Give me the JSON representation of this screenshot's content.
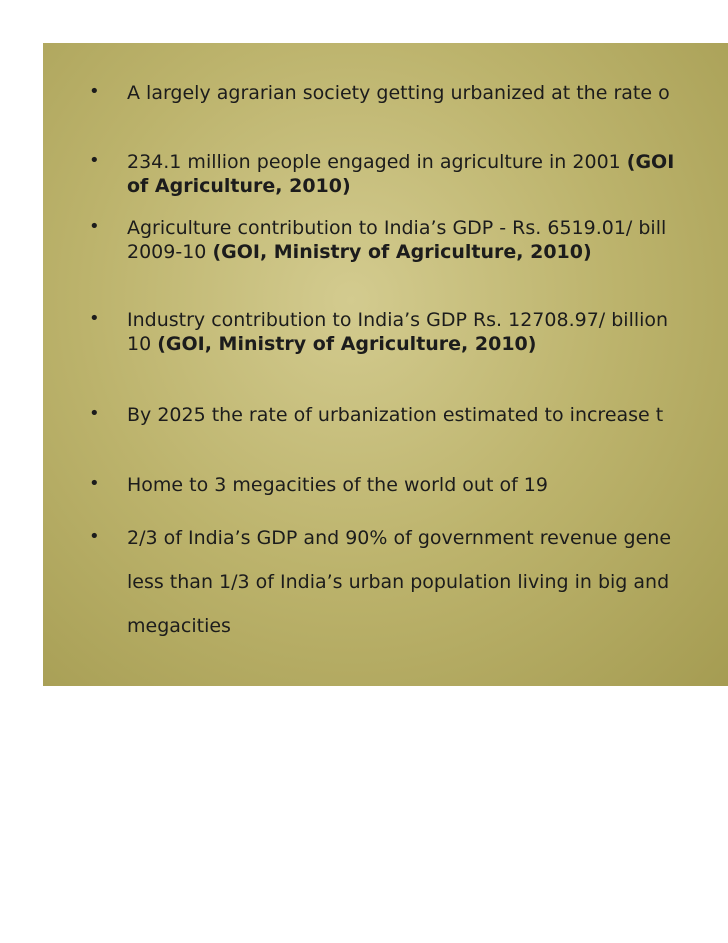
{
  "bullets": [
    {
      "lines": [
        {
          "text": "A largely agrarian society getting urbanized at the rate o",
          "cite": ""
        }
      ]
    },
    {
      "lines": [
        {
          "text": "234.1 million people engaged in agriculture in 2001 ",
          "cite": "(GOI"
        },
        {
          "text": "",
          "cite": "of Agriculture, 2010)"
        }
      ]
    },
    {
      "lines": [
        {
          "text": "Agriculture contribution to India’s GDP - Rs. 6519.01/ bill",
          "cite": ""
        },
        {
          "text": "2009-10 ",
          "cite": "(GOI, Ministry of Agriculture, 2010)"
        }
      ]
    },
    {
      "lines": [
        {
          "text": "Industry contribution to India’s GDP Rs. 12708.97/ billion",
          "cite": ""
        },
        {
          "text": "10 ",
          "cite": "(GOI, Ministry of Agriculture, 2010)"
        }
      ]
    },
    {
      "lines": [
        {
          "text": "By 2025 the rate of urbanization estimated to increase t",
          "cite": ""
        }
      ]
    },
    {
      "lines": [
        {
          "text": "Home to 3 megacities of the world out of 19",
          "cite": ""
        }
      ]
    },
    {
      "lines": [
        {
          "text": "2/3 of India’s GDP and 90% of government revenue  gene",
          "cite": ""
        },
        {
          "text": "less than 1/3 of India’s urban population living in big and",
          "cite": ""
        },
        {
          "text": "megacities",
          "cite": ""
        }
      ]
    }
  ]
}
